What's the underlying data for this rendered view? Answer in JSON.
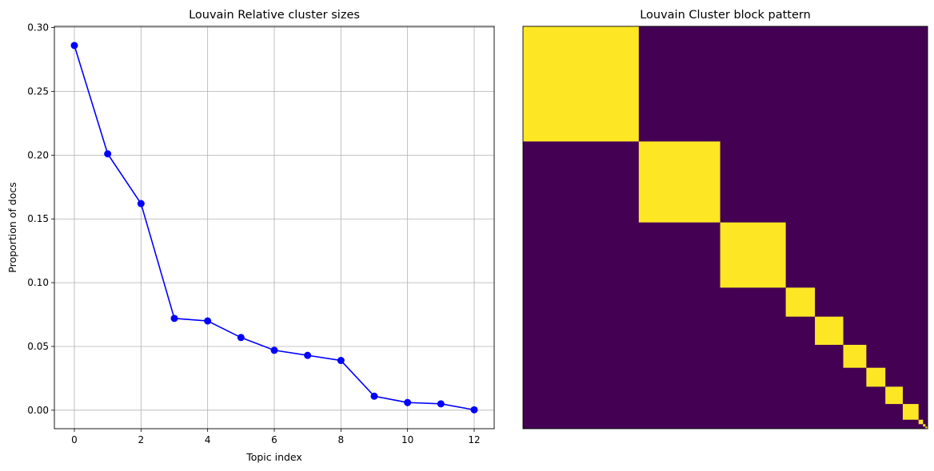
{
  "chart_data": [
    {
      "type": "line",
      "title": "Louvain Relative cluster sizes",
      "xlabel": "Topic index",
      "ylabel": "Proportion of docs",
      "xlim": [
        -0.6,
        12.6
      ],
      "ylim": [
        -0.0145,
        0.301
      ],
      "xticks": [
        0,
        2,
        4,
        6,
        8,
        10,
        12
      ],
      "yticks": [
        0.0,
        0.05,
        0.1,
        0.15,
        0.2,
        0.25,
        0.3
      ],
      "ytick_labels": [
        "0.00",
        "0.05",
        "0.10",
        "0.15",
        "0.20",
        "0.25",
        "0.30"
      ],
      "grid": true,
      "marker": "circle",
      "color": "#0000ff",
      "x": [
        0,
        1,
        2,
        3,
        4,
        5,
        6,
        7,
        8,
        9,
        10,
        11,
        12
      ],
      "y": [
        0.286,
        0.201,
        0.162,
        0.072,
        0.07,
        0.057,
        0.047,
        0.043,
        0.039,
        0.011,
        0.006,
        0.005,
        0.0003
      ]
    },
    {
      "type": "heatmap",
      "title": "Louvain Cluster block pattern",
      "colormap": "viridis",
      "color_low": "#440154",
      "color_high": "#fde725",
      "axes_visible": false,
      "cluster_proportions": [
        0.286,
        0.201,
        0.162,
        0.072,
        0.07,
        0.057,
        0.047,
        0.043,
        0.039,
        0.011,
        0.006,
        0.005,
        0.0003
      ],
      "pattern": "block-diagonal: 1 within same cluster, 0 otherwise"
    }
  ]
}
